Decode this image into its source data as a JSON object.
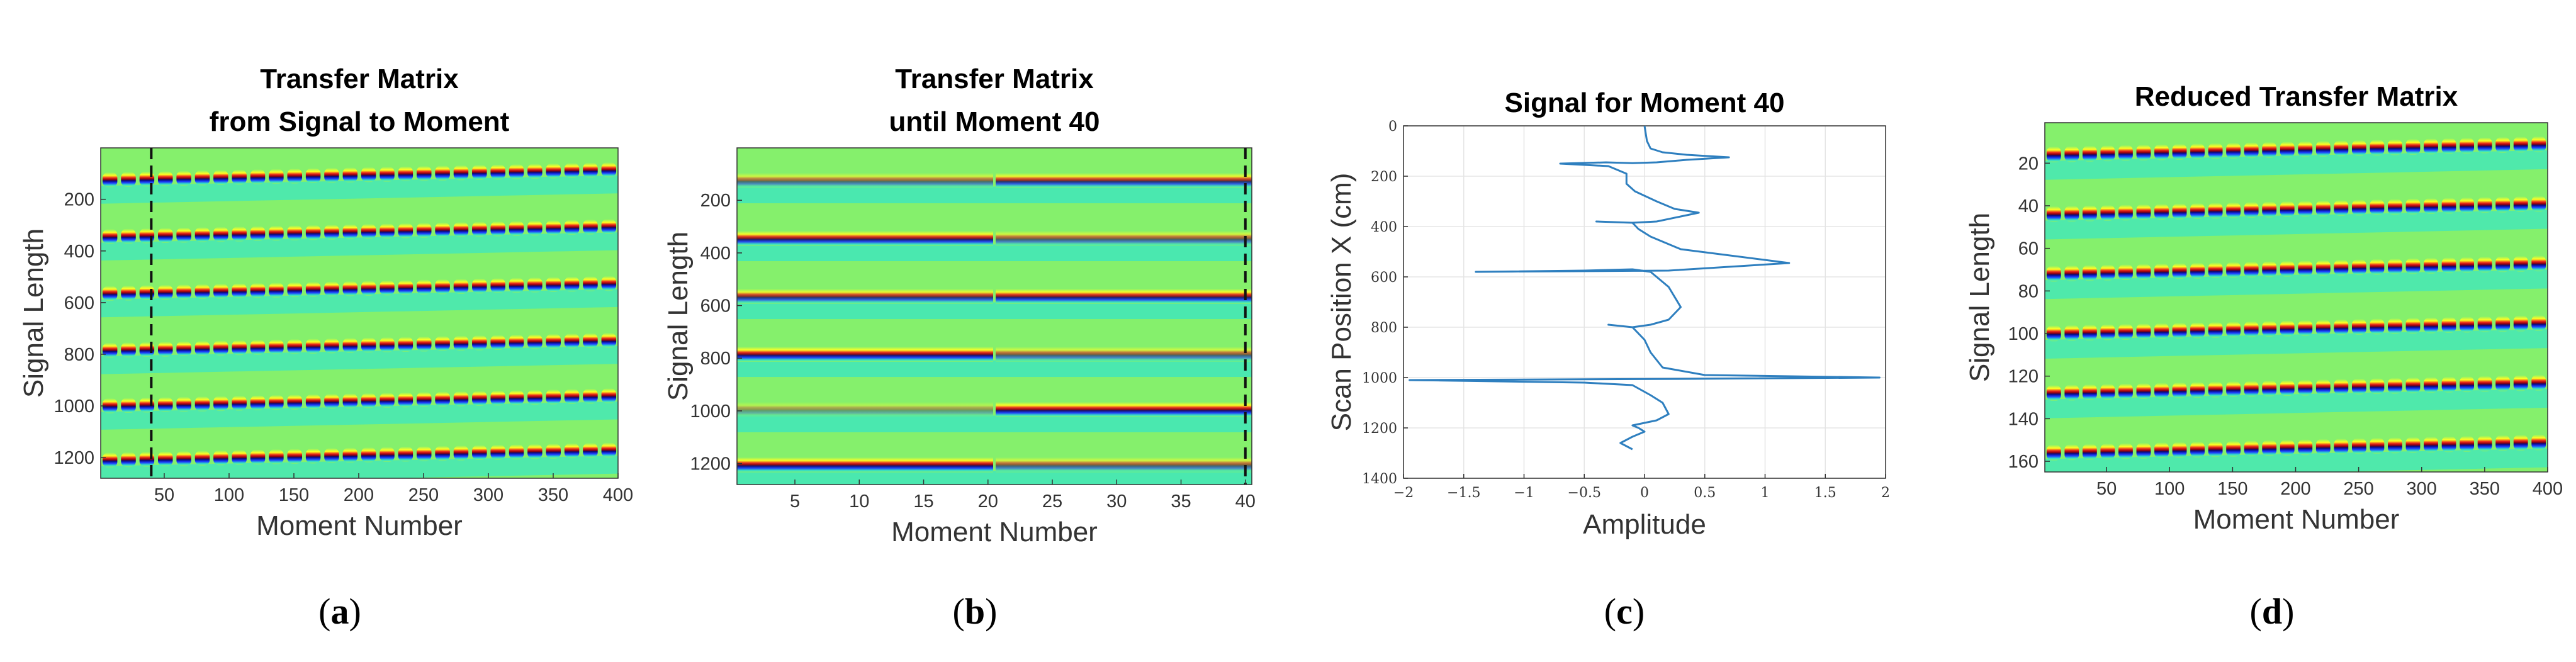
{
  "panels": [
    {
      "id": "a",
      "caption_letter": "a"
    },
    {
      "id": "b",
      "caption_letter": "b"
    },
    {
      "id": "c",
      "caption_letter": "c"
    },
    {
      "id": "d",
      "caption_letter": "d"
    }
  ],
  "chart_data": [
    {
      "type": "heatmap",
      "title": "Transfer Matrix",
      "subtitle": "from Signal to Moment",
      "xlabel": "Moment Number",
      "ylabel": "Signal Length",
      "xlim": [
        1,
        400
      ],
      "ylim": [
        1,
        1280
      ],
      "y_reversed": true,
      "x_ticks": [
        50,
        100,
        150,
        200,
        250,
        300,
        350,
        400
      ],
      "y_ticks": [
        200,
        400,
        600,
        800,
        1000,
        1200
      ],
      "band_positions_left": [
        125,
        345,
        565,
        785,
        1000,
        1210
      ],
      "band_drift_right": -40,
      "band_style": "dashed alternating red/blue",
      "marker_line_x": 40,
      "colormap": "jet"
    },
    {
      "type": "heatmap",
      "title": "Transfer Matrix",
      "subtitle": "until Moment 40",
      "xlabel": "Moment Number",
      "ylabel": "Signal Length",
      "xlim": [
        0.5,
        40.5
      ],
      "ylim": [
        1,
        1280
      ],
      "y_reversed": true,
      "x_ticks": [
        5,
        10,
        15,
        20,
        25,
        30,
        35,
        40
      ],
      "y_ticks": [
        200,
        400,
        600,
        800,
        1000,
        1200
      ],
      "band_positions": [
        125,
        345,
        565,
        785,
        995,
        1205
      ],
      "segment_split_x": 20.5,
      "marker_line_x": 40,
      "colormap": "jet"
    },
    {
      "type": "line",
      "title": "Signal for Moment 40",
      "xlabel": "Amplitude",
      "ylabel": "Scan Position X (cm)",
      "xlim": [
        -2,
        2
      ],
      "ylim": [
        0,
        1400
      ],
      "y_reversed": true,
      "grid": true,
      "x_ticks": [
        -2,
        -1.5,
        -1,
        -0.5,
        0,
        0.5,
        1,
        1.5,
        2
      ],
      "y_ticks": [
        0,
        200,
        400,
        600,
        800,
        1000,
        1200,
        1400
      ],
      "x": [
        0,
        0.01,
        0.02,
        0.05,
        0.15,
        0.35,
        0.7,
        0.35,
        0.1,
        -0.1,
        -0.32,
        -0.7,
        -0.3,
        -0.15,
        -0.15,
        -0.08,
        0.1,
        0.25,
        0.45,
        0.3,
        0.1,
        -0.1,
        -0.4,
        -0.1,
        -0.05,
        0.05,
        0.2,
        0.3,
        1.2,
        0.2,
        -1.4,
        -0.5,
        -0.1,
        0.05,
        0.2,
        0.3,
        0.2,
        0.05,
        -0.1,
        -0.3,
        -0.1,
        0.0,
        0.05,
        0.15,
        0.5,
        1.95,
        0.4,
        -1.95,
        -0.5,
        -0.1,
        0.05,
        0.15,
        0.2,
        0.1,
        0.0,
        -0.1,
        -0.05,
        0.0,
        -0.1,
        -0.2,
        -0.1
      ],
      "y": [
        0,
        30,
        60,
        90,
        105,
        115,
        125,
        135,
        145,
        148,
        145,
        150,
        160,
        190,
        230,
        260,
        300,
        330,
        345,
        360,
        380,
        385,
        380,
        385,
        410,
        440,
        470,
        490,
        545,
        575,
        580,
        575,
        570,
        580,
        640,
        720,
        770,
        790,
        800,
        790,
        800,
        850,
        900,
        960,
        990,
        1000,
        1005,
        1010,
        1020,
        1030,
        1070,
        1100,
        1145,
        1170,
        1180,
        1190,
        1200,
        1215,
        1235,
        1260,
        1285
      ],
      "series_color": "#2e7fbf"
    },
    {
      "type": "heatmap",
      "title": "Reduced Transfer Matrix",
      "xlabel": "Moment Number",
      "ylabel": "Signal Length",
      "xlim": [
        1,
        400
      ],
      "ylim": [
        1,
        165
      ],
      "y_reversed": true,
      "x_ticks": [
        50,
        100,
        150,
        200,
        250,
        300,
        350,
        400
      ],
      "y_ticks": [
        20,
        40,
        60,
        80,
        100,
        120,
        140,
        160
      ],
      "band_positions_left": [
        16,
        44,
        72,
        100,
        128,
        156
      ],
      "band_drift_right": -5,
      "band_style": "dashed alternating red/blue",
      "colormap": "jet"
    }
  ],
  "colors": {
    "jet_background": "#85f06c",
    "jet_cyan": "#37e5c6",
    "jet_yellow": "#ffff22",
    "jet_red": "#e8261a",
    "jet_darkred": "#8a0010",
    "jet_blue": "#1a3aff",
    "jet_navy": "#0a0a7a",
    "grid": "#e5e5e5",
    "line": "#2e7fbf"
  }
}
